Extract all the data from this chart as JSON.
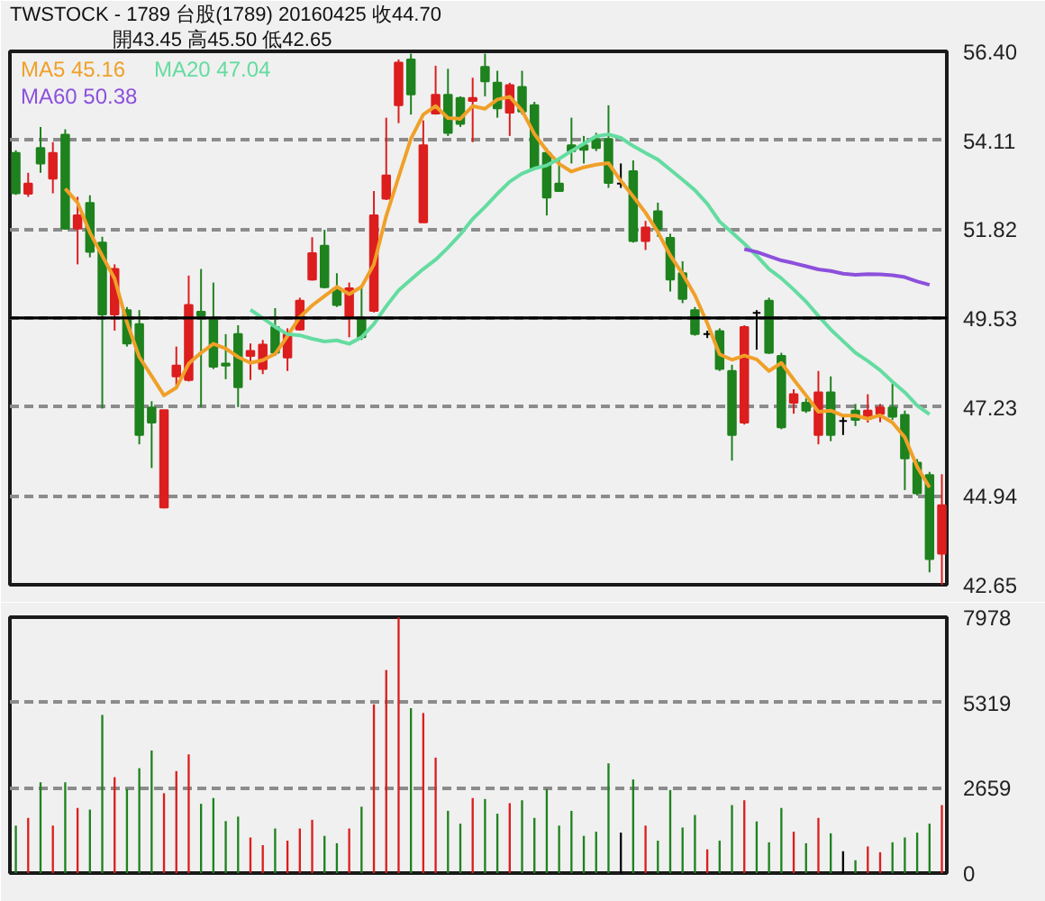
{
  "chart_data": [
    {
      "type": "candlestick",
      "title": "TWSTOCK - 1789 台股(1789) 20160425 收44.70",
      "subtitle": "開43.45 高45.50 低42.65",
      "categories": [
        null,
        null,
        null,
        null,
        null,
        null,
        null,
        null,
        null,
        null,
        null,
        null,
        null,
        null,
        null,
        null,
        null,
        null,
        null,
        null,
        null,
        null,
        null,
        null,
        null,
        null,
        null,
        null,
        null,
        null,
        null,
        null,
        null,
        null,
        null,
        null,
        null,
        null,
        null,
        null,
        null,
        null,
        null,
        null,
        null,
        null,
        null,
        null,
        null,
        null,
        null,
        null,
        null,
        null,
        null,
        null,
        null,
        null,
        null,
        null,
        null,
        null,
        null,
        null,
        null,
        null,
        null,
        null,
        null,
        null,
        null,
        null,
        null,
        null,
        null,
        null
      ],
      "ohlc": [
        [
          53.78,
          53.85,
          52.7,
          52.74
        ],
        [
          52.73,
          53.27,
          52.65,
          52.99
        ],
        [
          53.91,
          54.45,
          53.27,
          53.51
        ],
        [
          53.12,
          54.06,
          52.74,
          53.78
        ],
        [
          54.25,
          54.39,
          51.8,
          51.83
        ],
        [
          51.83,
          52.65,
          50.91,
          52.17
        ],
        [
          52.49,
          52.69,
          51.09,
          51.23
        ],
        [
          51.47,
          51.62,
          47.19,
          49.62
        ],
        [
          49.62,
          50.91,
          49.2,
          50.79
        ],
        [
          49.73,
          49.81,
          48.79,
          48.87
        ],
        [
          49.37,
          49.73,
          46.27,
          46.51
        ],
        [
          47.22,
          47.38,
          45.66,
          46.83
        ],
        [
          44.64,
          47.15,
          44.62,
          47.15
        ],
        [
          48.02,
          48.79,
          47.78,
          48.3
        ],
        [
          47.93,
          50.62,
          47.89,
          49.86
        ],
        [
          49.69,
          50.79,
          47.23,
          49.59
        ],
        [
          49.5,
          50.44,
          48.21,
          48.27
        ],
        [
          48.35,
          49.11,
          47.95,
          48.3
        ],
        [
          49.11,
          49.34,
          47.23,
          47.74
        ],
        [
          48.55,
          48.87,
          47.93,
          48.68
        ],
        [
          48.21,
          48.96,
          48.08,
          48.84
        ],
        [
          49.29,
          49.78,
          48.55,
          48.63
        ],
        [
          48.51,
          49.26,
          48.16,
          49.11
        ],
        [
          49.23,
          50.05,
          49.2,
          49.97
        ],
        [
          50.52,
          51.61,
          50.49,
          51.2
        ],
        [
          51.39,
          51.8,
          50.29,
          50.32
        ],
        [
          50.29,
          50.68,
          49.81,
          49.86
        ],
        [
          49.54,
          50.44,
          49.03,
          50.29
        ],
        [
          49.5,
          50.38,
          48.96,
          49.03
        ],
        [
          49.71,
          52.8,
          49.67,
          52.17
        ],
        [
          52.6,
          54.69,
          52.57,
          53.2
        ],
        [
          55.01,
          56.19,
          54.55,
          56.11
        ],
        [
          56.19,
          56.34,
          54.77,
          55.29
        ],
        [
          51.99,
          54.62,
          51.99,
          53.98
        ],
        [
          54.8,
          56.03,
          54.77,
          55.28
        ],
        [
          55.28,
          55.95,
          54.22,
          54.3
        ],
        [
          55.2,
          55.24,
          54.45,
          54.53
        ],
        [
          55.12,
          55.72,
          54.06,
          55.2
        ],
        [
          56.0,
          56.34,
          55.24,
          55.63
        ],
        [
          55.59,
          55.9,
          54.69,
          54.93
        ],
        [
          54.82,
          55.59,
          54.22,
          55.53
        ],
        [
          55.48,
          55.9,
          54.77,
          54.85
        ],
        [
          55.01,
          55.1,
          53.35,
          53.39
        ],
        [
          53.78,
          53.91,
          52.17,
          52.63
        ],
        [
          52.99,
          53.59,
          52.8,
          52.8
        ],
        [
          53.98,
          54.69,
          53.51,
          53.83
        ],
        [
          53.98,
          54.22,
          53.51,
          53.86
        ],
        [
          54.14,
          54.3,
          53.83,
          53.91
        ],
        [
          54.14,
          55.01,
          52.88,
          53.01
        ],
        [
          52.99,
          53.51,
          52.88,
          52.99
        ],
        [
          53.31,
          53.59,
          51.47,
          51.51
        ],
        [
          51.51,
          52.03,
          51.28,
          51.86
        ],
        [
          52.28,
          52.5,
          51.62,
          51.81
        ],
        [
          51.59,
          51.7,
          50.21,
          50.52
        ],
        [
          50.68,
          50.99,
          49.91,
          50.02
        ],
        [
          49.73,
          49.81,
          49.07,
          49.11
        ],
        [
          49.11,
          49.2,
          49.01,
          49.11
        ],
        [
          49.19,
          49.26,
          48.16,
          48.21
        ],
        [
          48.16,
          48.32,
          45.85,
          46.51
        ],
        [
          46.83,
          49.34,
          46.78,
          49.29
        ],
        [
          49.66,
          49.73,
          48.71,
          49.66
        ],
        [
          49.97,
          50.05,
          48.6,
          48.63
        ],
        [
          48.55,
          48.63,
          46.66,
          46.71
        ],
        [
          47.34,
          47.69,
          47.06,
          47.56
        ],
        [
          47.34,
          47.45,
          47.08,
          47.14
        ],
        [
          46.51,
          48.16,
          46.27,
          47.61
        ],
        [
          47.61,
          48.02,
          46.35,
          46.51
        ],
        [
          46.87,
          46.98,
          46.51,
          46.87
        ],
        [
          47.14,
          47.31,
          46.74,
          46.9
        ],
        [
          46.93,
          47.56,
          46.83,
          47.14
        ],
        [
          47.06,
          47.31,
          46.84,
          47.22
        ],
        [
          47.22,
          47.84,
          46.9,
          46.98
        ],
        [
          47.03,
          47.14,
          45.09,
          45.91
        ],
        [
          45.8,
          45.89,
          44.95,
          45.01
        ],
        [
          45.48,
          45.56,
          42.97,
          43.31
        ],
        [
          43.45,
          45.5,
          42.65,
          44.7
        ]
      ],
      "colors": [
        "#1e821e",
        "#dc1e1e",
        "#1e821e",
        "#dc1e1e",
        "#1e821e",
        "#dc1e1e",
        "#1e821e",
        "#1e821e",
        "#dc1e1e",
        "#1e821e",
        "#1e821e",
        "#1e821e",
        "#dc1e1e",
        "#dc1e1e",
        "#dc1e1e",
        "#1e821e",
        "#1e821e",
        "#1e821e",
        "#1e821e",
        "#dc1e1e",
        "#dc1e1e",
        "#1e821e",
        "#dc1e1e",
        "#dc1e1e",
        "#dc1e1e",
        "#1e821e",
        "#1e821e",
        "#dc1e1e",
        "#1e821e",
        "#dc1e1e",
        "#dc1e1e",
        "#dc1e1e",
        "#1e821e",
        "#dc1e1e",
        "#dc1e1e",
        "#1e821e",
        "#1e821e",
        "#dc1e1e",
        "#1e821e",
        "#1e821e",
        "#dc1e1e",
        "#1e821e",
        "#1e821e",
        "#1e821e",
        "#1e821e",
        "#1e821e",
        "#1e821e",
        "#1e821e",
        "#1e821e",
        "#000000",
        "#1e821e",
        "#dc1e1e",
        "#1e821e",
        "#1e821e",
        "#1e821e",
        "#1e821e",
        "#000000",
        "#1e821e",
        "#1e821e",
        "#dc1e1e",
        "#000000",
        "#1e821e",
        "#1e821e",
        "#dc1e1e",
        "#1e821e",
        "#dc1e1e",
        "#1e821e",
        "#000000",
        "#1e821e",
        "#dc1e1e",
        "#dc1e1e",
        "#1e821e",
        "#1e821e",
        "#1e821e",
        "#1e821e",
        "#dc1e1e"
      ],
      "series": [
        {
          "type": "line",
          "name": "MA5 45.16",
          "color": "#f0a028",
          "values": [
            null,
            null,
            null,
            null,
            52.86,
            52.5,
            51.73,
            51.13,
            50.54,
            49.41,
            48.52,
            48.03,
            47.53,
            47.73,
            48.35,
            48.63,
            48.86,
            48.74,
            48.52,
            48.37,
            48.44,
            48.6,
            49.06,
            49.55,
            49.85,
            50.09,
            50.33,
            50.14,
            50.33,
            50.91,
            52.16,
            53.16,
            54.15,
            54.77,
            54.99,
            54.68,
            54.66,
            54.99,
            54.92,
            55.16,
            55.23,
            54.87,
            54.27,
            53.84,
            53.5,
            53.3,
            53.41,
            53.48,
            53.52,
            53.06,
            52.66,
            52.24,
            51.74,
            51.14,
            50.66,
            50.11,
            49.39,
            48.59,
            48.45,
            48.56,
            48.46,
            48.16,
            48.37,
            47.94,
            47.53,
            47.11,
            47.14,
            47.01,
            47.01,
            46.93,
            47.02,
            46.83,
            46.45,
            45.69,
            45.16,
            null
          ]
        },
        {
          "type": "line",
          "name": "MA20 47.04",
          "color": "#64dca0",
          "values": [
            null,
            null,
            null,
            null,
            null,
            null,
            null,
            null,
            null,
            null,
            null,
            null,
            null,
            null,
            null,
            null,
            null,
            null,
            null,
            49.74,
            49.52,
            49.3,
            49.11,
            49.08,
            48.99,
            48.92,
            48.95,
            48.86,
            49.03,
            49.37,
            49.83,
            50.24,
            50.52,
            50.79,
            51.03,
            51.34,
            51.68,
            52.08,
            52.39,
            52.73,
            53.04,
            53.25,
            53.38,
            53.46,
            53.63,
            53.83,
            54.02,
            54.21,
            54.26,
            54.17,
            53.96,
            53.78,
            53.61,
            53.35,
            53.09,
            52.82,
            52.47,
            52.01,
            51.73,
            51.44,
            51.13,
            50.79,
            50.55,
            50.26,
            49.95,
            49.58,
            49.23,
            48.93,
            48.63,
            48.42,
            48.18,
            47.88,
            47.61,
            47.27,
            47.04,
            null
          ]
        },
        {
          "type": "line",
          "name": "MA60 50.38",
          "color": "#8c50dc",
          "values": [
            null,
            null,
            null,
            null,
            null,
            null,
            null,
            null,
            null,
            null,
            null,
            null,
            null,
            null,
            null,
            null,
            null,
            null,
            null,
            null,
            null,
            null,
            null,
            null,
            null,
            null,
            null,
            null,
            null,
            null,
            null,
            null,
            null,
            null,
            null,
            null,
            null,
            null,
            null,
            null,
            null,
            null,
            null,
            null,
            null,
            null,
            null,
            null,
            null,
            null,
            null,
            null,
            null,
            null,
            null,
            null,
            null,
            null,
            null,
            51.3,
            51.23,
            51.12,
            51.01,
            50.94,
            50.86,
            50.78,
            50.74,
            50.67,
            50.64,
            50.66,
            50.65,
            50.63,
            50.58,
            50.47,
            50.38,
            null
          ]
        }
      ],
      "ylim": [
        42.65,
        56.4
      ],
      "yticks": [
        42.65,
        44.94,
        47.23,
        49.53,
        51.82,
        54.11,
        {
          "value": 56.4,
          "label": "56.40"
        }
      ],
      "grid": "y",
      "ref_lines": [
        {
          "axis": "y",
          "value": 49.53,
          "color": "#000000",
          "line_style": "solid"
        }
      ],
      "legend": "top left",
      "tick_labels": "y"
    },
    {
      "type": "bar",
      "categories": [
        null,
        null,
        null,
        null,
        null,
        null,
        null,
        null,
        null,
        null,
        null,
        null,
        null,
        null,
        null,
        null,
        null,
        null,
        null,
        null,
        null,
        null,
        null,
        null,
        null,
        null,
        null,
        null,
        null,
        null,
        null,
        null,
        null,
        null,
        null,
        null,
        null,
        null,
        null,
        null,
        null,
        null,
        null,
        null,
        null,
        null,
        null,
        null,
        null,
        null,
        null,
        null,
        null,
        null,
        null,
        null,
        null,
        null,
        null,
        null,
        null,
        null,
        null,
        null,
        null,
        null,
        null,
        null,
        null,
        null,
        null,
        null,
        null,
        null,
        null,
        null
      ],
      "values": [
        1480,
        1720,
        2830,
        1480,
        2830,
        2030,
        1980,
        4930,
        2990,
        2620,
        3270,
        3820,
        2490,
        3180,
        3700,
        2160,
        2340,
        1620,
        1760,
        1110,
        870,
        1390,
        1010,
        1390,
        1660,
        1160,
        930,
        1390,
        2070,
        5260,
        6330,
        7970,
        5140,
        4990,
        3600,
        1940,
        1540,
        2340,
        2310,
        1850,
        2180,
        2270,
        1720,
        2620,
        1480,
        1940,
        1160,
        1290,
        3420,
        1260,
        2920,
        1480,
        1010,
        2590,
        1420,
        1810,
        740,
        1010,
        2120,
        2270,
        1610,
        960,
        2030,
        1290,
        930,
        1720,
        1240,
        680,
        400,
        830,
        650,
        960,
        1110,
        1260,
        1540,
        2120
      ],
      "colors": [
        "#1e821e",
        "#dc1e1e",
        "#1e821e",
        "#dc1e1e",
        "#1e821e",
        "#dc1e1e",
        "#1e821e",
        "#1e821e",
        "#dc1e1e",
        "#1e821e",
        "#1e821e",
        "#1e821e",
        "#dc1e1e",
        "#dc1e1e",
        "#dc1e1e",
        "#1e821e",
        "#1e821e",
        "#1e821e",
        "#1e821e",
        "#dc1e1e",
        "#dc1e1e",
        "#1e821e",
        "#dc1e1e",
        "#dc1e1e",
        "#dc1e1e",
        "#1e821e",
        "#1e821e",
        "#dc1e1e",
        "#1e821e",
        "#dc1e1e",
        "#dc1e1e",
        "#dc1e1e",
        "#1e821e",
        "#dc1e1e",
        "#dc1e1e",
        "#1e821e",
        "#1e821e",
        "#dc1e1e",
        "#1e821e",
        "#1e821e",
        "#dc1e1e",
        "#1e821e",
        "#1e821e",
        "#1e821e",
        "#1e821e",
        "#1e821e",
        "#1e821e",
        "#1e821e",
        "#1e821e",
        "#000000",
        "#1e821e",
        "#dc1e1e",
        "#1e821e",
        "#1e821e",
        "#1e821e",
        "#1e821e",
        "#dc1e1e",
        "#1e821e",
        "#1e821e",
        "#dc1e1e",
        "#1e821e",
        "#1e821e",
        "#1e821e",
        "#dc1e1e",
        "#1e821e",
        "#dc1e1e",
        "#1e821e",
        "#000000",
        "#1e821e",
        "#dc1e1e",
        "#dc1e1e",
        "#1e821e",
        "#1e821e",
        "#1e821e",
        "#1e821e",
        "#dc1e1e"
      ],
      "ylim": [
        0,
        7978
      ],
      "yticks": [
        0,
        2659,
        5319,
        7978
      ],
      "grid": "y",
      "tick_labels": "y"
    }
  ]
}
